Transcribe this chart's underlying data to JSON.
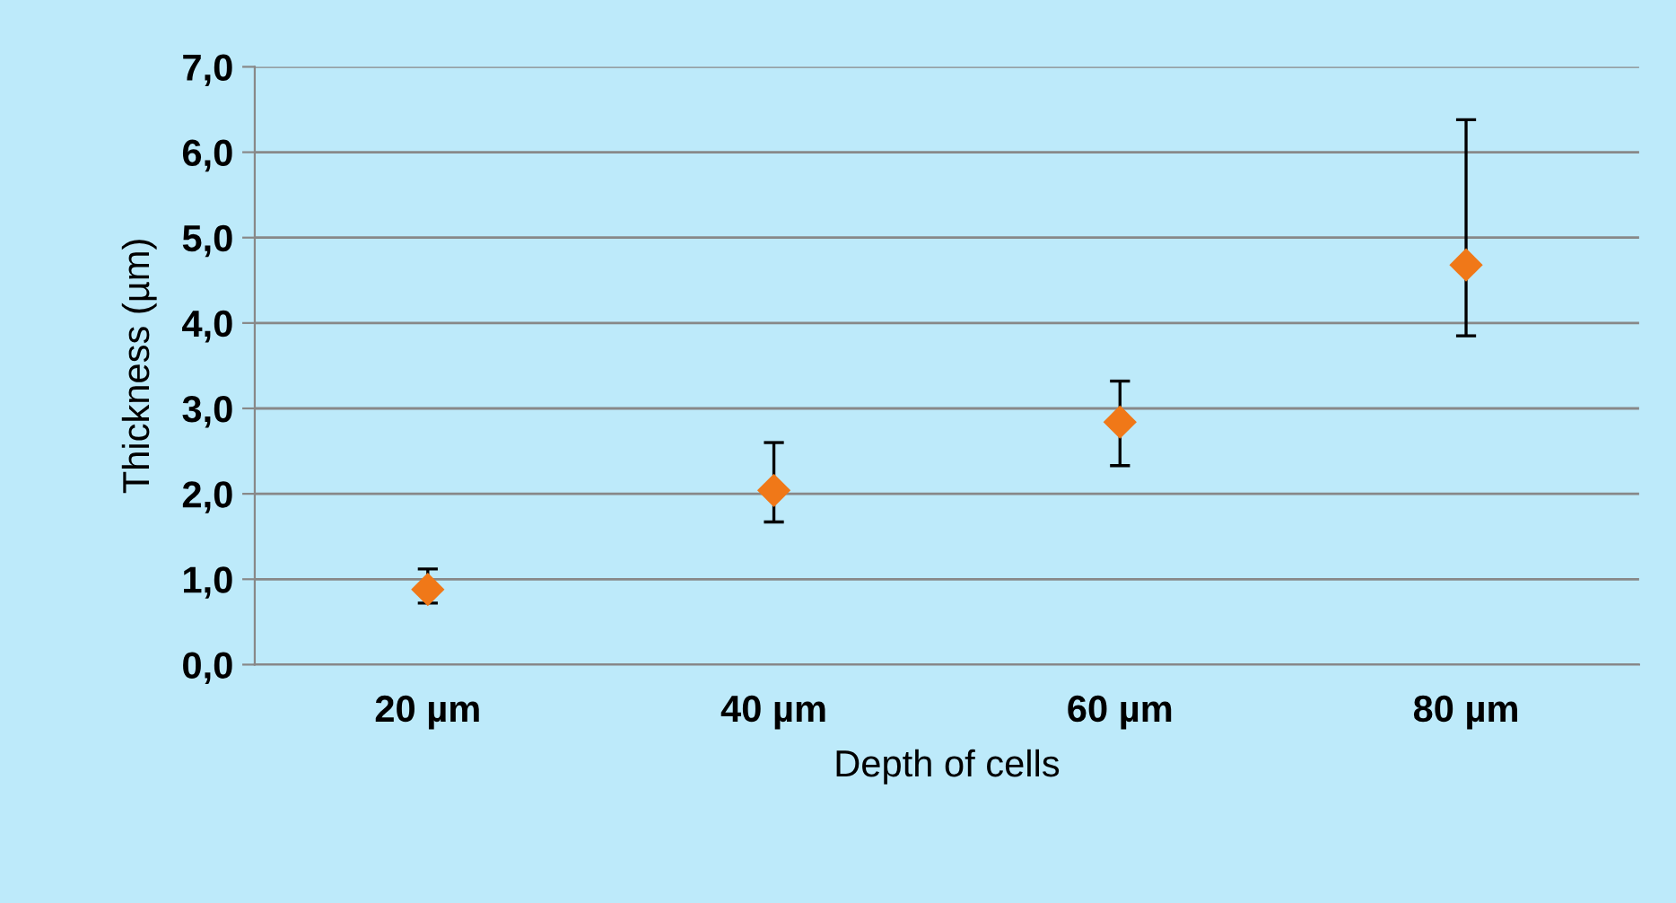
{
  "chart_data": {
    "type": "scatter",
    "xlabel": "Depth of cells",
    "ylabel": "Thickness (µm)",
    "categories": [
      "20 µm",
      "40 µm",
      "60 µm",
      "80 µm"
    ],
    "series": [
      {
        "color": "#f07818",
        "values": [
          0.88,
          2.04,
          2.84,
          4.68
        ],
        "errors": [
          [
            0.72,
            1.12
          ],
          [
            1.67,
            2.6
          ],
          [
            2.33,
            3.32
          ],
          [
            3.85,
            6.38
          ]
        ]
      }
    ],
    "ylim": [
      0,
      7
    ],
    "yticks": [
      {
        "value": 0,
        "label": "0,0"
      },
      {
        "value": 1,
        "label": "1,0"
      },
      {
        "value": 2,
        "label": "2,0"
      },
      {
        "value": 3,
        "label": "3,0"
      },
      {
        "value": 4,
        "label": "4,0"
      },
      {
        "value": 5,
        "label": "5,0"
      },
      {
        "value": 6,
        "label": "6,0"
      },
      {
        "value": 7,
        "label": "7,0"
      }
    ],
    "grid": "y",
    "marker": "diamond"
  }
}
